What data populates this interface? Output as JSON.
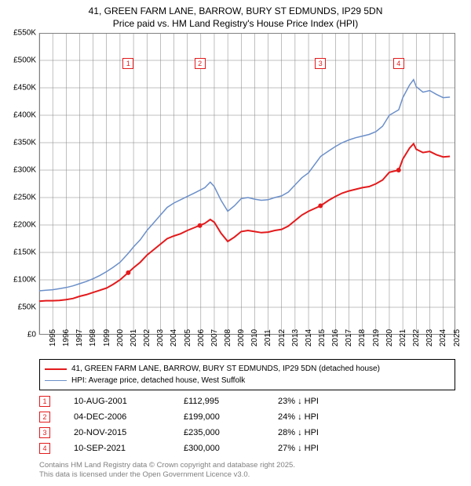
{
  "title_line1": "41, GREEN FARM LANE, BARROW, BURY ST EDMUNDS, IP29 5DN",
  "title_line2": "Price paid vs. HM Land Registry's House Price Index (HPI)",
  "chart": {
    "type": "line",
    "background_color": "#ffffff",
    "grid_color": "#808080",
    "ylim": [
      0,
      550000
    ],
    "ytick_step": 50000,
    "yticks": [
      "£0",
      "£50K",
      "£100K",
      "£150K",
      "£200K",
      "£250K",
      "£300K",
      "£350K",
      "£400K",
      "£450K",
      "£500K",
      "£550K"
    ],
    "xlim": [
      1995,
      2025.9
    ],
    "xticks": [
      1995,
      1996,
      1997,
      1998,
      1999,
      2000,
      2001,
      2002,
      2003,
      2004,
      2005,
      2006,
      2007,
      2008,
      2009,
      2010,
      2011,
      2012,
      2013,
      2014,
      2015,
      2016,
      2017,
      2018,
      2019,
      2020,
      2021,
      2022,
      2023,
      2024,
      2025
    ],
    "label_fontsize": 10,
    "series": [
      {
        "name": "price_paid",
        "color": "#e31a1c",
        "stroke_width": 2,
        "points": [
          [
            1995.0,
            61000
          ],
          [
            1995.5,
            62000
          ],
          [
            1996.0,
            62000
          ],
          [
            1996.5,
            62500
          ],
          [
            1997.0,
            64000
          ],
          [
            1997.5,
            66000
          ],
          [
            1998.0,
            70000
          ],
          [
            1998.5,
            73000
          ],
          [
            1999.0,
            77000
          ],
          [
            1999.5,
            81000
          ],
          [
            2000.0,
            85000
          ],
          [
            2000.5,
            92000
          ],
          [
            2001.0,
            100000
          ],
          [
            2001.6,
            112995
          ],
          [
            2002.0,
            122000
          ],
          [
            2002.5,
            132000
          ],
          [
            2003.0,
            145000
          ],
          [
            2003.5,
            155000
          ],
          [
            2004.0,
            165000
          ],
          [
            2004.5,
            175000
          ],
          [
            2005.0,
            180000
          ],
          [
            2005.5,
            184000
          ],
          [
            2006.0,
            190000
          ],
          [
            2006.5,
            195000
          ],
          [
            2006.9,
            199000
          ],
          [
            2007.3,
            203000
          ],
          [
            2007.7,
            210000
          ],
          [
            2008.0,
            205000
          ],
          [
            2008.5,
            185000
          ],
          [
            2009.0,
            170000
          ],
          [
            2009.5,
            178000
          ],
          [
            2010.0,
            188000
          ],
          [
            2010.5,
            190000
          ],
          [
            2011.0,
            188000
          ],
          [
            2011.5,
            186000
          ],
          [
            2012.0,
            187000
          ],
          [
            2012.5,
            190000
          ],
          [
            2013.0,
            192000
          ],
          [
            2013.5,
            198000
          ],
          [
            2014.0,
            208000
          ],
          [
            2014.5,
            218000
          ],
          [
            2015.0,
            225000
          ],
          [
            2015.9,
            235000
          ],
          [
            2016.5,
            245000
          ],
          [
            2017.0,
            252000
          ],
          [
            2017.5,
            258000
          ],
          [
            2018.0,
            262000
          ],
          [
            2018.5,
            265000
          ],
          [
            2019.0,
            268000
          ],
          [
            2019.5,
            270000
          ],
          [
            2020.0,
            275000
          ],
          [
            2020.5,
            282000
          ],
          [
            2021.0,
            296000
          ],
          [
            2021.7,
            300000
          ],
          [
            2022.0,
            320000
          ],
          [
            2022.5,
            340000
          ],
          [
            2022.8,
            348000
          ],
          [
            2023.0,
            338000
          ],
          [
            2023.5,
            332000
          ],
          [
            2024.0,
            334000
          ],
          [
            2024.5,
            328000
          ],
          [
            2025.0,
            324000
          ],
          [
            2025.5,
            325000
          ]
        ]
      },
      {
        "name": "hpi",
        "color": "#6b8fc9",
        "stroke_width": 1.5,
        "points": [
          [
            1995.0,
            80000
          ],
          [
            1995.5,
            81000
          ],
          [
            1996.0,
            82000
          ],
          [
            1996.5,
            84000
          ],
          [
            1997.0,
            86000
          ],
          [
            1997.5,
            89000
          ],
          [
            1998.0,
            93000
          ],
          [
            1998.5,
            97000
          ],
          [
            1999.0,
            102000
          ],
          [
            1999.5,
            108000
          ],
          [
            2000.0,
            115000
          ],
          [
            2000.5,
            123000
          ],
          [
            2001.0,
            132000
          ],
          [
            2001.6,
            148000
          ],
          [
            2002.0,
            160000
          ],
          [
            2002.5,
            173000
          ],
          [
            2003.0,
            190000
          ],
          [
            2003.5,
            204000
          ],
          [
            2004.0,
            218000
          ],
          [
            2004.5,
            232000
          ],
          [
            2005.0,
            240000
          ],
          [
            2005.5,
            246000
          ],
          [
            2006.0,
            252000
          ],
          [
            2006.5,
            258000
          ],
          [
            2006.9,
            263000
          ],
          [
            2007.3,
            268000
          ],
          [
            2007.7,
            278000
          ],
          [
            2008.0,
            270000
          ],
          [
            2008.5,
            245000
          ],
          [
            2009.0,
            225000
          ],
          [
            2009.5,
            235000
          ],
          [
            2010.0,
            248000
          ],
          [
            2010.5,
            250000
          ],
          [
            2011.0,
            247000
          ],
          [
            2011.5,
            245000
          ],
          [
            2012.0,
            246000
          ],
          [
            2012.5,
            250000
          ],
          [
            2013.0,
            253000
          ],
          [
            2013.5,
            260000
          ],
          [
            2014.0,
            273000
          ],
          [
            2014.5,
            286000
          ],
          [
            2015.0,
            295000
          ],
          [
            2015.9,
            325000
          ],
          [
            2016.5,
            335000
          ],
          [
            2017.0,
            343000
          ],
          [
            2017.5,
            350000
          ],
          [
            2018.0,
            355000
          ],
          [
            2018.5,
            359000
          ],
          [
            2019.0,
            362000
          ],
          [
            2019.5,
            365000
          ],
          [
            2020.0,
            370000
          ],
          [
            2020.5,
            380000
          ],
          [
            2021.0,
            400000
          ],
          [
            2021.7,
            410000
          ],
          [
            2022.0,
            432000
          ],
          [
            2022.5,
            455000
          ],
          [
            2022.8,
            465000
          ],
          [
            2023.0,
            452000
          ],
          [
            2023.5,
            442000
          ],
          [
            2024.0,
            445000
          ],
          [
            2024.5,
            438000
          ],
          [
            2025.0,
            432000
          ],
          [
            2025.5,
            433000
          ]
        ]
      }
    ],
    "sale_markers": [
      {
        "n": "1",
        "x": 2001.61,
        "y_box": 495000,
        "y_dot": 112995
      },
      {
        "n": "2",
        "x": 2006.93,
        "y_box": 495000,
        "y_dot": 199000
      },
      {
        "n": "3",
        "x": 2015.89,
        "y_box": 495000,
        "y_dot": 235000
      },
      {
        "n": "4",
        "x": 2021.69,
        "y_box": 495000,
        "y_dot": 300000
      }
    ]
  },
  "legend": {
    "items": [
      {
        "color": "#e31a1c",
        "width": 2,
        "label": "41, GREEN FARM LANE, BARROW, BURY ST EDMUNDS, IP29 5DN (detached house)"
      },
      {
        "color": "#6b8fc9",
        "width": 1.5,
        "label": "HPI: Average price, detached house, West Suffolk"
      }
    ]
  },
  "sales": [
    {
      "n": "1",
      "date": "10-AUG-2001",
      "price": "£112,995",
      "delta": "23% ↓ HPI"
    },
    {
      "n": "2",
      "date": "04-DEC-2006",
      "price": "£199,000",
      "delta": "24% ↓ HPI"
    },
    {
      "n": "3",
      "date": "20-NOV-2015",
      "price": "£235,000",
      "delta": "28% ↓ HPI"
    },
    {
      "n": "4",
      "date": "10-SEP-2021",
      "price": "£300,000",
      "delta": "27% ↓ HPI"
    }
  ],
  "footer_line1": "Contains HM Land Registry data © Crown copyright and database right 2025.",
  "footer_line2": "This data is licensed under the Open Government Licence v3.0."
}
